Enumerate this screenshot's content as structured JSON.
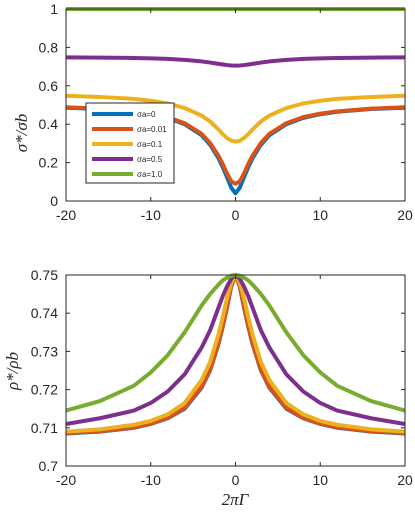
{
  "chart_data": [
    {
      "type": "line",
      "ylabel": "σ*/σb",
      "xlim": [
        -20,
        20
      ],
      "ylim": [
        0,
        1
      ],
      "x_ticks": [
        "-20",
        "-10",
        "0",
        "10",
        "20"
      ],
      "y_ticks": [
        "0",
        "0.2",
        "0.4",
        "0.6",
        "0.8",
        "1"
      ],
      "grid": false,
      "legend": {
        "placement": "left",
        "entries": [
          "σa=0",
          "σa=0.01",
          "σa=0.1",
          "σa=0.5",
          "σa=1.0"
        ]
      },
      "x": [
        -20,
        -16,
        -12,
        -10,
        -8,
        -6,
        -4,
        -3,
        -2,
        -1.5,
        -1,
        -0.5,
        0,
        0.5,
        1,
        1.5,
        2,
        3,
        4,
        6,
        8,
        10,
        12,
        16,
        20
      ],
      "series": [
        {
          "name": "σa=0",
          "color": "#0072BD",
          "values": [
            0.486,
            0.479,
            0.465,
            0.452,
            0.433,
            0.4,
            0.343,
            0.293,
            0.222,
            0.176,
            0.123,
            0.069,
            0.04,
            0.069,
            0.123,
            0.176,
            0.222,
            0.293,
            0.343,
            0.4,
            0.433,
            0.452,
            0.465,
            0.479,
            0.486
          ]
        },
        {
          "name": "σa=0.01",
          "color": "#D95319",
          "values": [
            0.488,
            0.481,
            0.467,
            0.455,
            0.437,
            0.405,
            0.35,
            0.302,
            0.235,
            0.192,
            0.143,
            0.102,
            0.09,
            0.102,
            0.143,
            0.192,
            0.235,
            0.302,
            0.35,
            0.405,
            0.437,
            0.455,
            0.467,
            0.481,
            0.488
          ]
        },
        {
          "name": "σa=0.1",
          "color": "#EDB120",
          "values": [
            0.548,
            0.542,
            0.532,
            0.522,
            0.508,
            0.484,
            0.445,
            0.414,
            0.372,
            0.348,
            0.328,
            0.314,
            0.31,
            0.314,
            0.328,
            0.348,
            0.372,
            0.414,
            0.445,
            0.484,
            0.508,
            0.522,
            0.532,
            0.542,
            0.548
          ]
        },
        {
          "name": "σa=0.5",
          "color": "#7E2F8E",
          "values": [
            0.748,
            0.747,
            0.745,
            0.743,
            0.74,
            0.735,
            0.727,
            0.721,
            0.714,
            0.711,
            0.708,
            0.706,
            0.705,
            0.706,
            0.708,
            0.711,
            0.714,
            0.721,
            0.727,
            0.735,
            0.74,
            0.743,
            0.745,
            0.747,
            0.748
          ]
        },
        {
          "name": "σa=1.0",
          "color": "#77AC30",
          "values": [
            1,
            1,
            1,
            1,
            1,
            1,
            1,
            1,
            1,
            1,
            1,
            1,
            1,
            1,
            1,
            1,
            1,
            1,
            1,
            1,
            1,
            1,
            1,
            1,
            1
          ]
        }
      ]
    },
    {
      "type": "line",
      "xlabel": "2πΓ",
      "ylabel": "ρ*/ρb",
      "xlim": [
        -20,
        20
      ],
      "ylim": [
        0.7,
        0.75
      ],
      "x_ticks": [
        "-20",
        "-10",
        "0",
        "10",
        "20"
      ],
      "y_ticks": [
        "0.7",
        "0.71",
        "0.72",
        "0.73",
        "0.74",
        "0.75"
      ],
      "grid": false,
      "x": [
        -20,
        -16,
        -12,
        -10,
        -8,
        -6,
        -4,
        -3,
        -2,
        -1.5,
        -1,
        -0.5,
        0,
        0.5,
        1,
        1.5,
        2,
        3,
        4,
        6,
        8,
        10,
        12,
        16,
        20
      ],
      "series": [
        {
          "name": "σa=0",
          "color": "#0072BD",
          "values": [
            0.7085,
            0.709,
            0.71,
            0.711,
            0.7125,
            0.715,
            0.7205,
            0.725,
            0.732,
            0.7365,
            0.7415,
            0.747,
            0.75,
            0.747,
            0.7415,
            0.7365,
            0.732,
            0.725,
            0.7205,
            0.715,
            0.7125,
            0.711,
            0.71,
            0.709,
            0.7085
          ]
        },
        {
          "name": "σa=0.01",
          "color": "#D95319",
          "values": [
            0.7086,
            0.7091,
            0.7101,
            0.7111,
            0.7126,
            0.7152,
            0.7207,
            0.7252,
            0.7322,
            0.7367,
            0.7417,
            0.7471,
            0.75,
            0.7471,
            0.7417,
            0.7367,
            0.7322,
            0.7252,
            0.7207,
            0.7152,
            0.7126,
            0.7111,
            0.7101,
            0.7091,
            0.7086
          ]
        },
        {
          "name": "σa=0.1",
          "color": "#EDB120",
          "values": [
            0.709,
            0.7096,
            0.7108,
            0.7118,
            0.7135,
            0.7165,
            0.7225,
            0.7272,
            0.7345,
            0.739,
            0.744,
            0.748,
            0.75,
            0.748,
            0.744,
            0.739,
            0.7345,
            0.7272,
            0.7225,
            0.7165,
            0.7135,
            0.7118,
            0.7108,
            0.7096,
            0.709
          ]
        },
        {
          "name": "σa=0.5",
          "color": "#7E2F8E",
          "values": [
            0.711,
            0.7125,
            0.7145,
            0.7165,
            0.7195,
            0.724,
            0.731,
            0.7355,
            0.7415,
            0.7445,
            0.747,
            0.749,
            0.75,
            0.749,
            0.747,
            0.7445,
            0.7415,
            0.7355,
            0.731,
            0.724,
            0.7195,
            0.7165,
            0.7145,
            0.7125,
            0.711
          ]
        },
        {
          "name": "σa=1.0",
          "color": "#77AC30",
          "values": [
            0.7145,
            0.717,
            0.721,
            0.7245,
            0.729,
            0.735,
            0.742,
            0.745,
            0.7475,
            0.7486,
            0.7493,
            0.7498,
            0.75,
            0.7498,
            0.7493,
            0.7486,
            0.7475,
            0.745,
            0.742,
            0.735,
            0.729,
            0.7245,
            0.721,
            0.717,
            0.7145
          ]
        }
      ]
    }
  ]
}
